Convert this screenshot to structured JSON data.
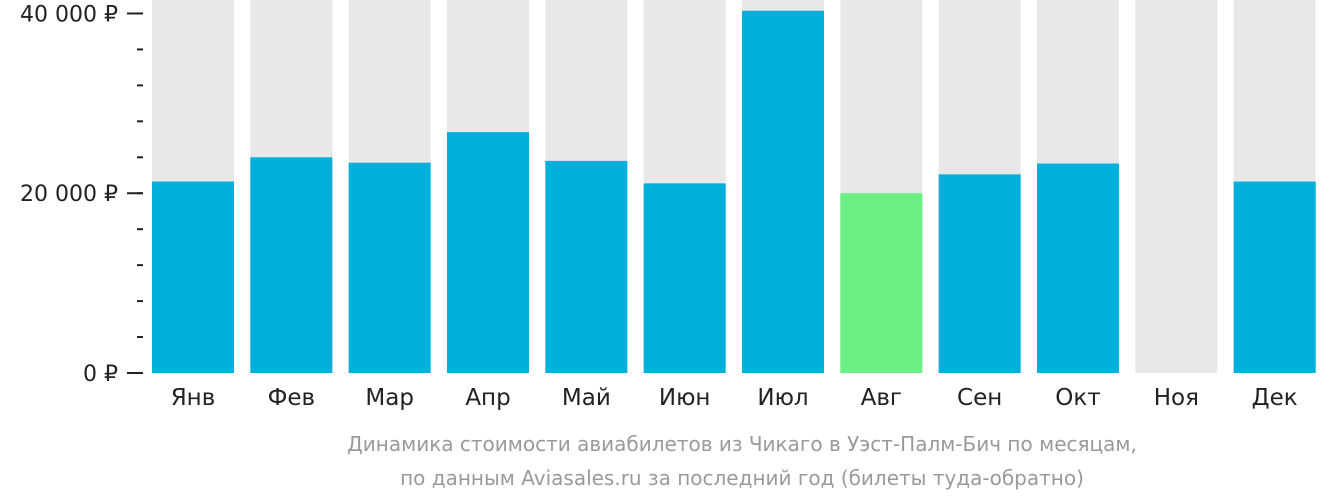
{
  "chart_data": {
    "type": "bar",
    "title": "",
    "xlabel": "",
    "ylabel": "",
    "categories": [
      "Янв",
      "Фев",
      "Мар",
      "Апр",
      "Май",
      "Июн",
      "Июл",
      "Авг",
      "Сен",
      "Окт",
      "Ноя",
      "Дек"
    ],
    "values": [
      21300,
      24000,
      23400,
      26800,
      23600,
      21100,
      40300,
      20000,
      22100,
      23300,
      null,
      21300
    ],
    "highlight_index": 7,
    "ylim": [
      0,
      41500
    ],
    "y_ticks": [
      {
        "value": 0,
        "label": "0 ₽"
      },
      {
        "value": 20000,
        "label": "20 000 ₽"
      },
      {
        "value": 40000,
        "label": "40 000 ₽"
      }
    ],
    "y_minor_step": 4000,
    "colors": {
      "bar": "#00b0dc",
      "highlight": "#6bf083",
      "background_bar": "#e8e8e8",
      "axis": "#222222"
    },
    "grid": false,
    "legend": "none"
  },
  "caption": {
    "line1": "Динамика стоимости авиабилетов из Чикаго в Уэст-Палм-Бич по месяцам,",
    "line2": "по данным Aviasales.ru за последний год (билеты туда-обратно)"
  }
}
